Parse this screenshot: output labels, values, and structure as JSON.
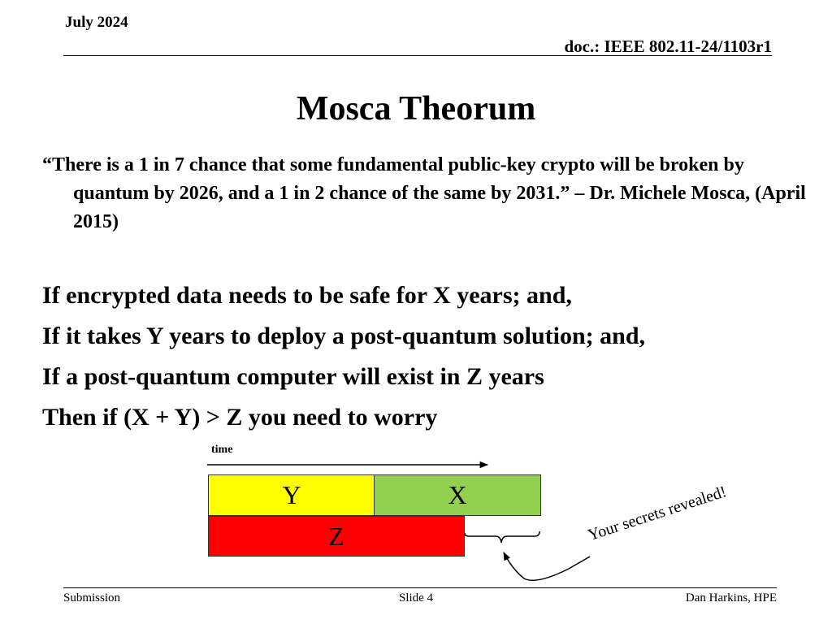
{
  "header": {
    "date": "July 2024",
    "doc": "doc.: IEEE 802.11-24/1103r1"
  },
  "title": "Mosca Theorum",
  "quote": {
    "text": "“There is a 1 in 7 chance that some fundamental public-key crypto will be broken by quantum by 2026, and a 1 in 2 chance of the same by 2031.” – Dr. Michele Mosca, (April 2015)"
  },
  "conditions": [
    "If encrypted data needs to be safe for X years; and,",
    "If it takes Y years to deploy a post-quantum solution; and,",
    "If a post-quantum computer will exist in Z years",
    "Then if (X + Y) > Z you need to worry"
  ],
  "diagram": {
    "time_label": "time",
    "box_y": "Y",
    "box_x": "X",
    "box_z": "Z",
    "revealed_label": "Your secrets revealed!",
    "colors": {
      "y": "#ffff00",
      "x": "#92d050",
      "z": "#ff0000"
    }
  },
  "footer": {
    "left": "Submission",
    "center": "Slide 4",
    "right": "Dan Harkins, HPE"
  }
}
